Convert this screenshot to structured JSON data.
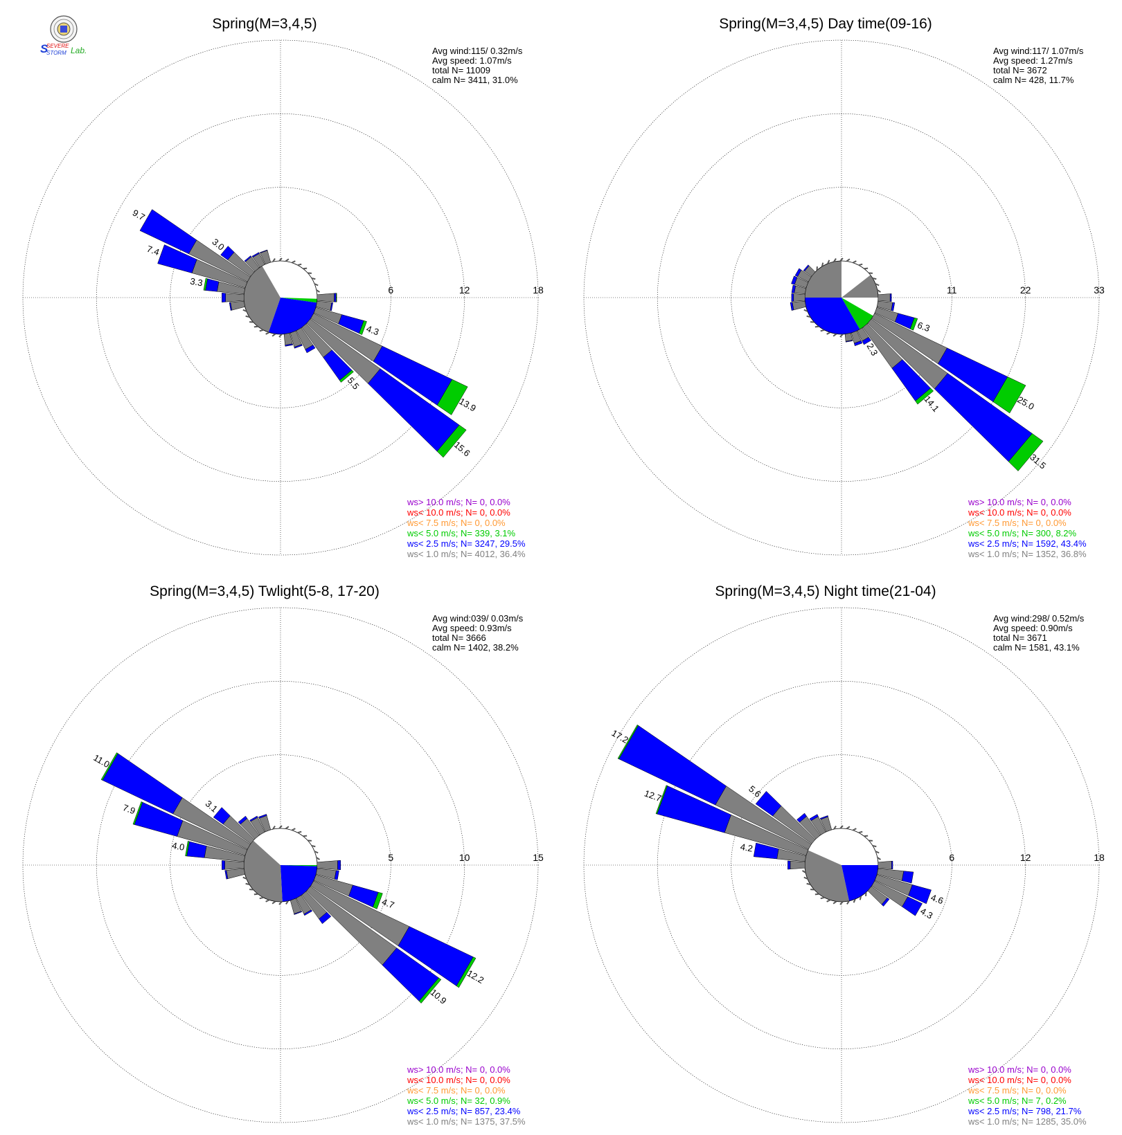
{
  "logo": {
    "line1": "SEVERE",
    "line2": "STORM",
    "line3": "Lab."
  },
  "colors": {
    "gt10": "#9900cc",
    "lt10": "#ff0000",
    "lt7_5": "#ff9933",
    "lt5": "#00cc00",
    "lt2_5": "#0000ff",
    "lt1": "#808080"
  },
  "chart_data": [
    {
      "type": "windrose",
      "title": "Spring(M=3,4,5)",
      "rings": [
        "6",
        "12",
        "18"
      ],
      "rmax": 18,
      "stats": {
        "avg_wind": "Avg wind:115/ 0.32m/s",
        "avg_speed": "Avg speed: 1.07m/s",
        "total": "total N=       11009",
        "calm": "calm N=   3411,  31.0%"
      },
      "legend": [
        {
          "text": "ws> 10.0 m/s; N=     0,  0.0%",
          "color": "#9900cc"
        },
        {
          "text": "ws< 10.0 m/s; N=     0,  0.0%",
          "color": "#ff0000"
        },
        {
          "text": "ws<  7.5 m/s; N=     0,  0.0%",
          "color": "#ff9933"
        },
        {
          "text": "ws<  5.0 m/s; N=   339,  3.1%",
          "color": "#00cc00"
        },
        {
          "text": "ws<  2.5 m/s; N=  3247, 29.5%",
          "color": "#0000ff"
        },
        {
          "text": "ws<  1.0 m/s; N=  4012, 36.4%",
          "color": "#808080"
        }
      ],
      "calm_pie": [
        {
          "from": 0,
          "to": 92,
          "color": "#ffffff"
        },
        {
          "from": 92,
          "to": 98,
          "color": "#00cc00"
        },
        {
          "from": 98,
          "to": 199,
          "color": "#0000ff"
        },
        {
          "from": 199,
          "to": 330,
          "color": "#808080"
        },
        {
          "from": 330,
          "to": 360,
          "color": "#ffffff"
        }
      ],
      "bars": [
        {
          "dir": 110,
          "total": 4.3,
          "label": "4.3",
          "gray": 2.2,
          "blue": 1.85,
          "green": 0.25
        },
        {
          "dir": 120,
          "total": 13.9,
          "label": "13.9",
          "gray": 6.2,
          "blue": 6.3,
          "green": 1.4
        },
        {
          "dir": 130,
          "total": 15.6,
          "label": "15.6",
          "gray": 7.0,
          "blue": 7.9,
          "green": 0.7
        },
        {
          "dir": 140,
          "total": 5.5,
          "label": "5.5",
          "gray": 3.0,
          "blue": 2.3,
          "green": 0.2
        },
        {
          "dir": 280,
          "total": 3.3,
          "label": "3.3",
          "gray": 2.2,
          "blue": 0.95,
          "green": 0.15
        },
        {
          "dir": 290,
          "total": 7.4,
          "label": "7.4",
          "gray": 4.5,
          "blue": 2.9,
          "green": 0
        },
        {
          "dir": 300,
          "total": 9.7,
          "label": "9.7",
          "gray": 5.3,
          "blue": 4.4,
          "green": 0
        },
        {
          "dir": 310,
          "total": 3.0,
          "label": "3.0",
          "gray": 2.3,
          "blue": 0.7,
          "green": 0
        },
        {
          "dir": 90,
          "total": 1.6,
          "label": "",
          "gray": 1.4,
          "blue": 0.15,
          "green": 0.05
        },
        {
          "dir": 100,
          "total": 1.3,
          "label": "",
          "gray": 1.2,
          "blue": 0.1,
          "green": 0
        },
        {
          "dir": 150,
          "total": 2.0,
          "label": "",
          "gray": 1.7,
          "blue": 0.3,
          "green": 0
        },
        {
          "dir": 160,
          "total": 1.3,
          "label": "",
          "gray": 1.2,
          "blue": 0.1,
          "green": 0
        },
        {
          "dir": 170,
          "total": 1.0,
          "label": "",
          "gray": 0.9,
          "blue": 0.1,
          "green": 0
        },
        {
          "dir": 260,
          "total": 1.2,
          "label": "",
          "gray": 1.1,
          "blue": 0.1,
          "green": 0
        },
        {
          "dir": 270,
          "total": 1.8,
          "label": "",
          "gray": 1.5,
          "blue": 0.3,
          "green": 0
        },
        {
          "dir": 320,
          "total": 1.2,
          "label": "",
          "gray": 1.1,
          "blue": 0.1,
          "green": 0
        },
        {
          "dir": 330,
          "total": 1.1,
          "label": "",
          "gray": 1.0,
          "blue": 0.1,
          "green": 0
        },
        {
          "dir": 340,
          "total": 1.05,
          "label": "",
          "gray": 1.0,
          "blue": 0.05,
          "green": 0
        }
      ]
    },
    {
      "type": "windrose",
      "title": "Spring(M=3,4,5) Day time(09-16)",
      "rings": [
        "11",
        "22",
        "33"
      ],
      "rmax": 33,
      "stats": {
        "avg_wind": "Avg wind:117/ 1.07m/s",
        "avg_speed": "Avg speed: 1.27m/s",
        "total": "total N=       3672",
        "calm": "calm N=    428,  11.7%"
      },
      "legend": [
        {
          "text": "ws> 10.0 m/s; N=     0,  0.0%",
          "color": "#9900cc"
        },
        {
          "text": "ws< 10.0 m/s; N=     0,  0.0%",
          "color": "#ff0000"
        },
        {
          "text": "ws<  7.5 m/s; N=     0,  0.0%",
          "color": "#ff9933"
        },
        {
          "text": "ws<  5.0 m/s; N=   300,  8.2%",
          "color": "#00cc00"
        },
        {
          "text": "ws<  2.5 m/s; N=  1592, 43.4%",
          "color": "#0000ff"
        },
        {
          "text": "ws<  1.0 m/s; N=  1352, 36.8%",
          "color": "#808080"
        }
      ],
      "calm_pie": [
        {
          "from": 0,
          "to": 52,
          "color": "#ffffff"
        },
        {
          "from": 52,
          "to": 90,
          "color": "#808080"
        },
        {
          "from": 90,
          "to": 120,
          "color": "#ffffff"
        },
        {
          "from": 120,
          "to": 150,
          "color": "#00cc00"
        },
        {
          "from": 150,
          "to": 270,
          "color": "#0000ff"
        },
        {
          "from": 270,
          "to": 360,
          "color": "#808080"
        }
      ],
      "bars": [
        {
          "dir": 110,
          "total": 6.3,
          "label": "6.3",
          "gray": 3.3,
          "blue": 2.5,
          "green": 0.5
        },
        {
          "dir": 120,
          "total": 25.0,
          "label": "25.0",
          "gray": 12.0,
          "blue": 10.0,
          "green": 3.0
        },
        {
          "dir": 130,
          "total": 31.5,
          "label": "31.5",
          "gray": 14.0,
          "blue": 15.5,
          "green": 2.0
        },
        {
          "dir": 140,
          "total": 14.1,
          "label": "14.1",
          "gray": 7.5,
          "blue": 6.0,
          "green": 0.6
        },
        {
          "dir": 150,
          "total": 2.3,
          "label": "2.3",
          "gray": 1.7,
          "blue": 0.6,
          "green": 0
        },
        {
          "dir": 90,
          "total": 2.0,
          "label": "",
          "gray": 1.8,
          "blue": 0.2,
          "green": 0
        },
        {
          "dir": 100,
          "total": 2.5,
          "label": "",
          "gray": 2.2,
          "blue": 0.3,
          "green": 0
        },
        {
          "dir": 160,
          "total": 2.0,
          "label": "",
          "gray": 1.6,
          "blue": 0.4,
          "green": 0
        },
        {
          "dir": 170,
          "total": 1.2,
          "label": "",
          "gray": 1.1,
          "blue": 0.1,
          "green": 0
        },
        {
          "dir": 260,
          "total": 2.2,
          "label": "",
          "gray": 1.9,
          "blue": 0.3,
          "green": 0
        },
        {
          "dir": 270,
          "total": 2.0,
          "label": "",
          "gray": 1.7,
          "blue": 0.3,
          "green": 0
        },
        {
          "dir": 280,
          "total": 2.0,
          "label": "",
          "gray": 1.6,
          "blue": 0.4,
          "green": 0
        },
        {
          "dir": 290,
          "total": 2.3,
          "label": "",
          "gray": 1.8,
          "blue": 0.5,
          "green": 0
        },
        {
          "dir": 300,
          "total": 2.2,
          "label": "",
          "gray": 1.8,
          "blue": 0.4,
          "green": 0
        },
        {
          "dir": 310,
          "total": 1.5,
          "label": "",
          "gray": 1.3,
          "blue": 0.2,
          "green": 0
        }
      ]
    },
    {
      "type": "windrose",
      "title": "Spring(M=3,4,5) Twlight(5-8, 17-20)",
      "rings": [
        "5",
        "10",
        "15"
      ],
      "rmax": 15,
      "stats": {
        "avg_wind": "Avg wind:039/ 0.03m/s",
        "avg_speed": "Avg speed: 0.93m/s",
        "total": "total N=       3666",
        "calm": "calm N=   1402,  38.2%"
      },
      "legend": [
        {
          "text": "ws> 10.0 m/s; N=     0,  0.0%",
          "color": "#9900cc"
        },
        {
          "text": "ws< 10.0 m/s; N=     0,  0.0%",
          "color": "#ff0000"
        },
        {
          "text": "ws<  7.5 m/s; N=     0,  0.0%",
          "color": "#ff9933"
        },
        {
          "text": "ws<  5.0 m/s; N=    32,  0.9%",
          "color": "#00cc00"
        },
        {
          "text": "ws<  2.5 m/s; N=   857, 23.4%",
          "color": "#0000ff"
        },
        {
          "text": "ws<  1.0 m/s; N=  1375, 37.5%",
          "color": "#808080"
        }
      ],
      "calm_pie": [
        {
          "from": 0,
          "to": 90,
          "color": "#ffffff"
        },
        {
          "from": 90,
          "to": 92,
          "color": "#00cc00"
        },
        {
          "from": 92,
          "to": 177,
          "color": "#0000ff"
        },
        {
          "from": 177,
          "to": 312,
          "color": "#808080"
        },
        {
          "from": 312,
          "to": 360,
          "color": "#ffffff"
        }
      ],
      "bars": [
        {
          "dir": 110,
          "total": 4.7,
          "label": "4.7",
          "gray": 2.6,
          "blue": 1.8,
          "green": 0.3
        },
        {
          "dir": 120,
          "total": 12.2,
          "label": "12.2",
          "gray": 7.2,
          "blue": 4.8,
          "green": 0.2
        },
        {
          "dir": 130,
          "total": 10.9,
          "label": "10.9",
          "gray": 7.2,
          "blue": 3.5,
          "green": 0.2
        },
        {
          "dir": 140,
          "total": 2.4,
          "label": "",
          "gray": 2.0,
          "blue": 0.4,
          "green": 0
        },
        {
          "dir": 280,
          "total": 4.0,
          "label": "4.0",
          "gray": 2.7,
          "blue": 1.2,
          "green": 0.1
        },
        {
          "dir": 290,
          "total": 7.9,
          "label": "7.9",
          "gray": 4.8,
          "blue": 3.0,
          "green": 0.1
        },
        {
          "dir": 300,
          "total": 11.0,
          "label": "11.0",
          "gray": 5.6,
          "blue": 5.3,
          "green": 0.1
        },
        {
          "dir": 310,
          "total": 3.1,
          "label": "3.1",
          "gray": 2.3,
          "blue": 0.8,
          "green": 0
        },
        {
          "dir": 90,
          "total": 1.6,
          "label": "",
          "gray": 1.4,
          "blue": 0.2,
          "green": 0
        },
        {
          "dir": 100,
          "total": 1.5,
          "label": "",
          "gray": 1.3,
          "blue": 0.2,
          "green": 0
        },
        {
          "dir": 150,
          "total": 1.3,
          "label": "",
          "gray": 1.2,
          "blue": 0.1,
          "green": 0
        },
        {
          "dir": 160,
          "total": 1.0,
          "label": "",
          "gray": 0.95,
          "blue": 0.05,
          "green": 0
        },
        {
          "dir": 260,
          "total": 1.3,
          "label": "",
          "gray": 1.2,
          "blue": 0.1,
          "green": 0
        },
        {
          "dir": 270,
          "total": 1.5,
          "label": "",
          "gray": 1.3,
          "blue": 0.2,
          "green": 0
        },
        {
          "dir": 320,
          "total": 1.6,
          "label": "",
          "gray": 1.4,
          "blue": 0.2,
          "green": 0
        },
        {
          "dir": 330,
          "total": 1.2,
          "label": "",
          "gray": 1.1,
          "blue": 0.1,
          "green": 0
        },
        {
          "dir": 340,
          "total": 1.1,
          "label": "",
          "gray": 1.0,
          "blue": 0.1,
          "green": 0
        }
      ]
    },
    {
      "type": "windrose",
      "title": "Spring(M=3,4,5) Night time(21-04)",
      "rings": [
        "6",
        "12",
        "18"
      ],
      "rmax": 18,
      "stats": {
        "avg_wind": "Avg wind:298/ 0.52m/s",
        "avg_speed": "Avg speed: 0.90m/s",
        "total": "total N=       3671",
        "calm": "calm N=   1581,  43.1%"
      },
      "legend": [
        {
          "text": "ws> 10.0 m/s; N=     0,  0.0%",
          "color": "#9900cc"
        },
        {
          "text": "ws< 10.0 m/s; N=     0,  0.0%",
          "color": "#ff0000"
        },
        {
          "text": "ws<  7.5 m/s; N=     0,  0.0%",
          "color": "#ff9933"
        },
        {
          "text": "ws<  5.0 m/s; N=     7,  0.2%",
          "color": "#00cc00"
        },
        {
          "text": "ws<  2.5 m/s; N=   798, 21.7%",
          "color": "#0000ff"
        },
        {
          "text": "ws<  1.0 m/s; N=  1285, 35.0%",
          "color": "#808080"
        }
      ],
      "calm_pie": [
        {
          "from": 0,
          "to": 90,
          "color": "#ffffff"
        },
        {
          "from": 90,
          "to": 168,
          "color": "#0000ff"
        },
        {
          "from": 168,
          "to": 294,
          "color": "#808080"
        },
        {
          "from": 294,
          "to": 360,
          "color": "#ffffff"
        }
      ],
      "bars": [
        {
          "dir": 110,
          "total": 4.6,
          "label": "4.6",
          "gray": 3.0,
          "blue": 1.6,
          "green": 0
        },
        {
          "dir": 120,
          "total": 4.3,
          "label": "4.3",
          "gray": 3.0,
          "blue": 1.3,
          "green": 0
        },
        {
          "dir": 100,
          "total": 2.9,
          "label": "",
          "gray": 2.1,
          "blue": 0.8,
          "green": 0
        },
        {
          "dir": 280,
          "total": 4.2,
          "label": "4.2",
          "gray": 2.3,
          "blue": 1.9,
          "green": 0
        },
        {
          "dir": 290,
          "total": 12.7,
          "label": "12.7",
          "gray": 6.9,
          "blue": 5.7,
          "green": 0.1
        },
        {
          "dir": 300,
          "total": 17.2,
          "label": "17.2",
          "gray": 8.4,
          "blue": 8.7,
          "green": 0.1
        },
        {
          "dir": 310,
          "total": 5.6,
          "label": "5.6",
          "gray": 3.9,
          "blue": 1.7,
          "green": 0
        },
        {
          "dir": 90,
          "total": 1.2,
          "label": "",
          "gray": 1.1,
          "blue": 0.1,
          "green": 0
        },
        {
          "dir": 130,
          "total": 1.8,
          "label": "",
          "gray": 1.6,
          "blue": 0.2,
          "green": 0
        },
        {
          "dir": 270,
          "total": 1.4,
          "label": "",
          "gray": 1.2,
          "blue": 0.2,
          "green": 0
        },
        {
          "dir": 320,
          "total": 2.2,
          "label": "",
          "gray": 1.9,
          "blue": 0.3,
          "green": 0
        },
        {
          "dir": 330,
          "total": 1.6,
          "label": "",
          "gray": 1.4,
          "blue": 0.2,
          "green": 0
        },
        {
          "dir": 340,
          "total": 1.2,
          "label": "",
          "gray": 1.1,
          "blue": 0.1,
          "green": 0
        }
      ]
    }
  ]
}
